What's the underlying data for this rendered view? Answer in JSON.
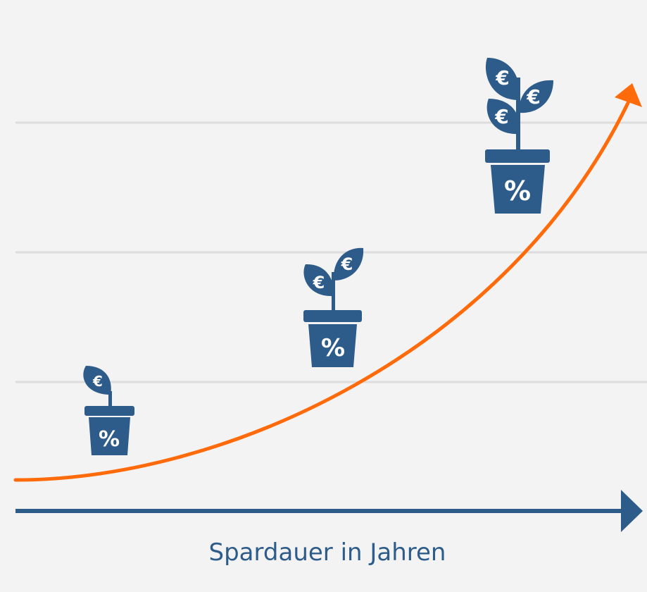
{
  "x_axis": {
    "label": "Spardauer in Jahren"
  },
  "plants": [
    {
      "name": "small-plant",
      "pot_symbol": "%",
      "leaf_symbols": [
        "€"
      ]
    },
    {
      "name": "medium-plant",
      "pot_symbol": "%",
      "leaf_symbols": [
        "€",
        "€"
      ]
    },
    {
      "name": "large-plant",
      "pot_symbol": "%",
      "leaf_symbols": [
        "€",
        "€",
        "€"
      ]
    }
  ],
  "colors": {
    "background": "#f3f3f3",
    "gridline": "#dddddd",
    "axis": "#2e5c8a",
    "growth_curve": "#ff6b0a",
    "plant": "#2e5c8a"
  }
}
